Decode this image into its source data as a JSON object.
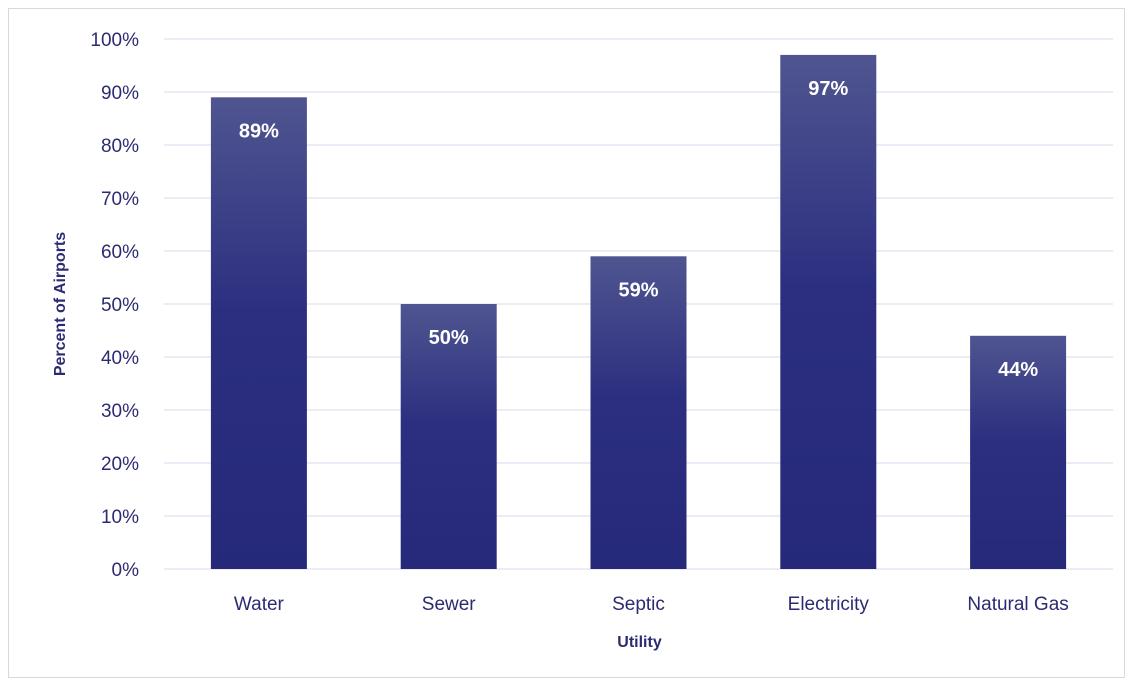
{
  "chart_data": {
    "type": "bar",
    "categories": [
      "Water",
      "Sewer",
      "Septic",
      "Electricity",
      "Natural Gas"
    ],
    "values": [
      89,
      50,
      59,
      97,
      44
    ],
    "data_labels": [
      "89%",
      "50%",
      "59%",
      "97%",
      "44%"
    ],
    "ylim": [
      0,
      100
    ],
    "yticks": [
      0,
      10,
      20,
      30,
      40,
      50,
      60,
      70,
      80,
      90,
      100
    ],
    "ytick_labels": [
      "0%",
      "10%",
      "20%",
      "30%",
      "40%",
      "50%",
      "60%",
      "70%",
      "80%",
      "90%",
      "100%"
    ],
    "xlabel": "Utility",
    "ylabel": "Percent of Airports",
    "grid": true,
    "legend": false,
    "colors": {
      "bar_top": "#4f5590",
      "bar_mid": "#2c2f80",
      "bar_bottom": "#26297a",
      "grid": "#d9d9ec",
      "text": "#2b2b72"
    }
  }
}
